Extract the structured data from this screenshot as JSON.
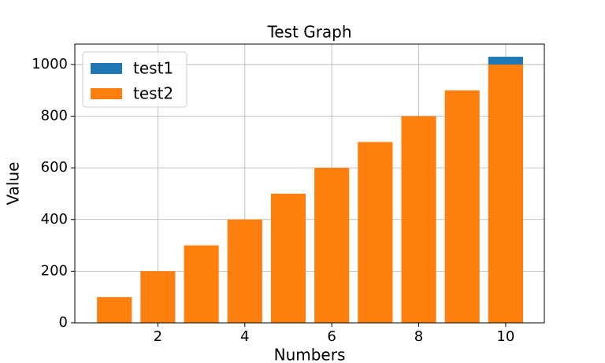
{
  "chart_data": {
    "type": "bar",
    "title": "Test Graph",
    "x_label": "Numbers",
    "y_label": "Value",
    "x": [
      1,
      2,
      3,
      4,
      5,
      6,
      7,
      8,
      9,
      10
    ],
    "series": [
      {
        "name": "test1",
        "color": "#1f77b4",
        "values": [
          null,
          null,
          null,
          null,
          null,
          null,
          null,
          null,
          null,
          1030
        ]
      },
      {
        "name": "test2",
        "color": "#ff7f0e",
        "values": [
          100,
          200,
          300,
          400,
          500,
          600,
          700,
          800,
          900,
          1000
        ]
      }
    ],
    "bar_width": 0.8,
    "xlim": [
      0.09,
      10.89
    ],
    "xticks": [
      2,
      4,
      6,
      8,
      10
    ],
    "ylim": [
      0,
      1079
    ],
    "yticks": [
      0,
      200,
      400,
      600,
      800,
      1000
    ],
    "grid": true,
    "legend": "upper-left"
  }
}
